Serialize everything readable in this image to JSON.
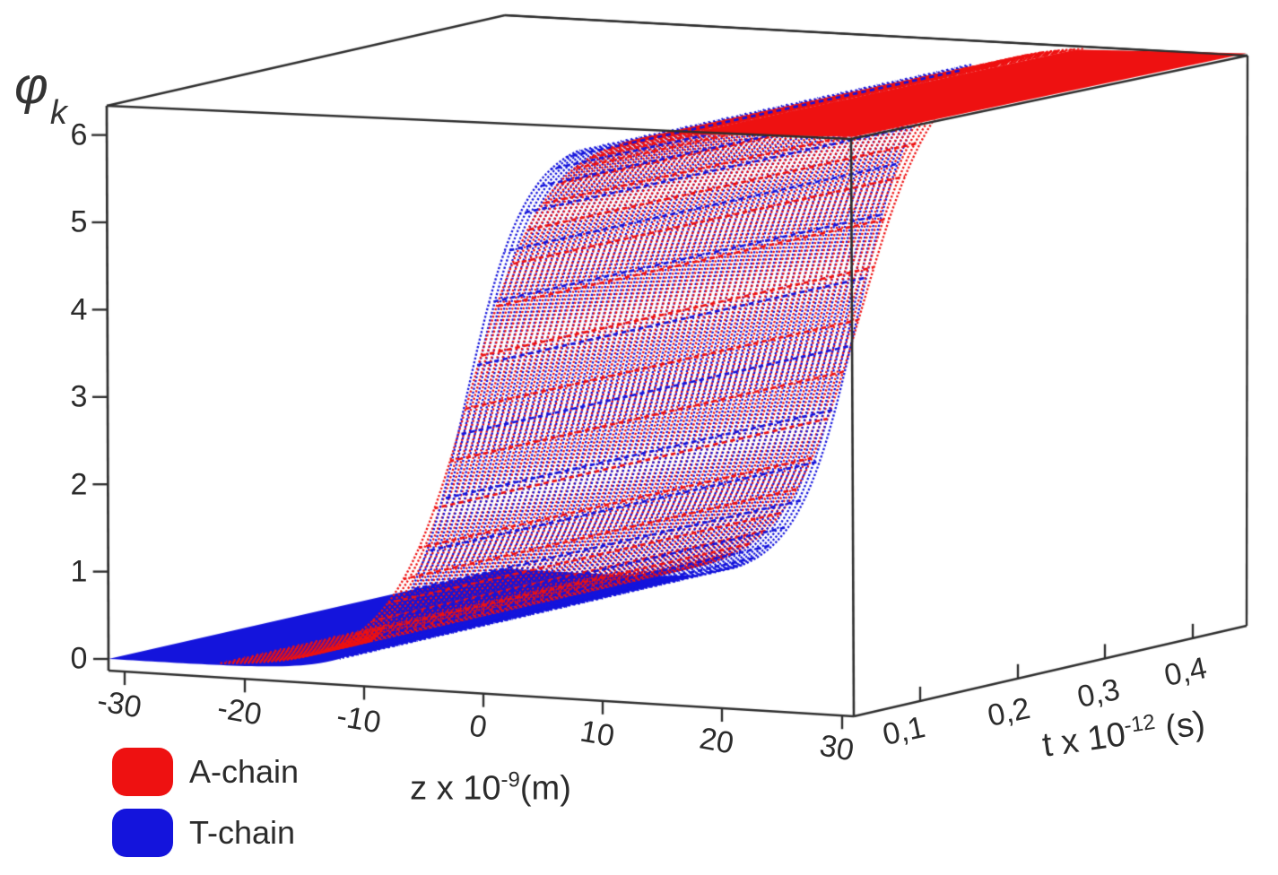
{
  "chart_data": {
    "type": "surface",
    "title": "",
    "description": "Two overlapping sine-Gordon kink surfaces phi_k(z,t) rising from 0 to 2*pi, plotted in a 3D box",
    "axes": {
      "vertical": {
        "symbol": "φ",
        "subscript": "k",
        "ticks": [
          "6",
          "5",
          "4",
          "3",
          "2",
          "1",
          "0"
        ],
        "range": [
          0,
          6.45
        ]
      },
      "z": {
        "label_prefix": "z x 10",
        "label_exponent": "-9",
        "label_suffix": "(m)",
        "tick_labels": [
          "-30",
          "-20",
          "-10",
          "0",
          "10",
          "20",
          "30"
        ],
        "ticks": [
          -30,
          -20,
          -10,
          0,
          10,
          20,
          30
        ],
        "range": [
          -30,
          30
        ]
      },
      "t": {
        "label_prefix": "t x 10",
        "label_exponent": "-12",
        "label_suffix": " (s)",
        "tick_labels": [
          "0,1",
          "0,2",
          "0,3",
          "0,4"
        ],
        "ticks": [
          0.1,
          0.2,
          0.3,
          0.4
        ],
        "range": [
          0.05,
          0.47
        ]
      }
    },
    "legend": [
      {
        "label": "A-chain",
        "color": "#ee1111"
      },
      {
        "label": "T-chain",
        "color": "#1414dc"
      }
    ],
    "series": [
      {
        "name": "A-chain",
        "color": "#ee1111",
        "kink_center_nm": -1.05,
        "kink_width_nm": 4.1,
        "amplitude_rad": 6.36,
        "plateau_low": 0,
        "plateau_high": 6.36,
        "dash_lo": 0.03,
        "dash_hi": 6.31,
        "stripe_z0": -11.25
      },
      {
        "name": "T-chain",
        "color": "#1414dc",
        "kink_center_nm": -1.3,
        "kink_width_nm": 3.15,
        "amplitude_rad": 6.283,
        "plateau_low": 0,
        "plateau_high": 6.283,
        "dash_lo": 0.16,
        "dash_hi": 6.08,
        "stripe_z0": -10.62
      }
    ],
    "frame_color": "#2e2e2e",
    "text_color": "#2b2b2b",
    "background": "#ffffff"
  }
}
